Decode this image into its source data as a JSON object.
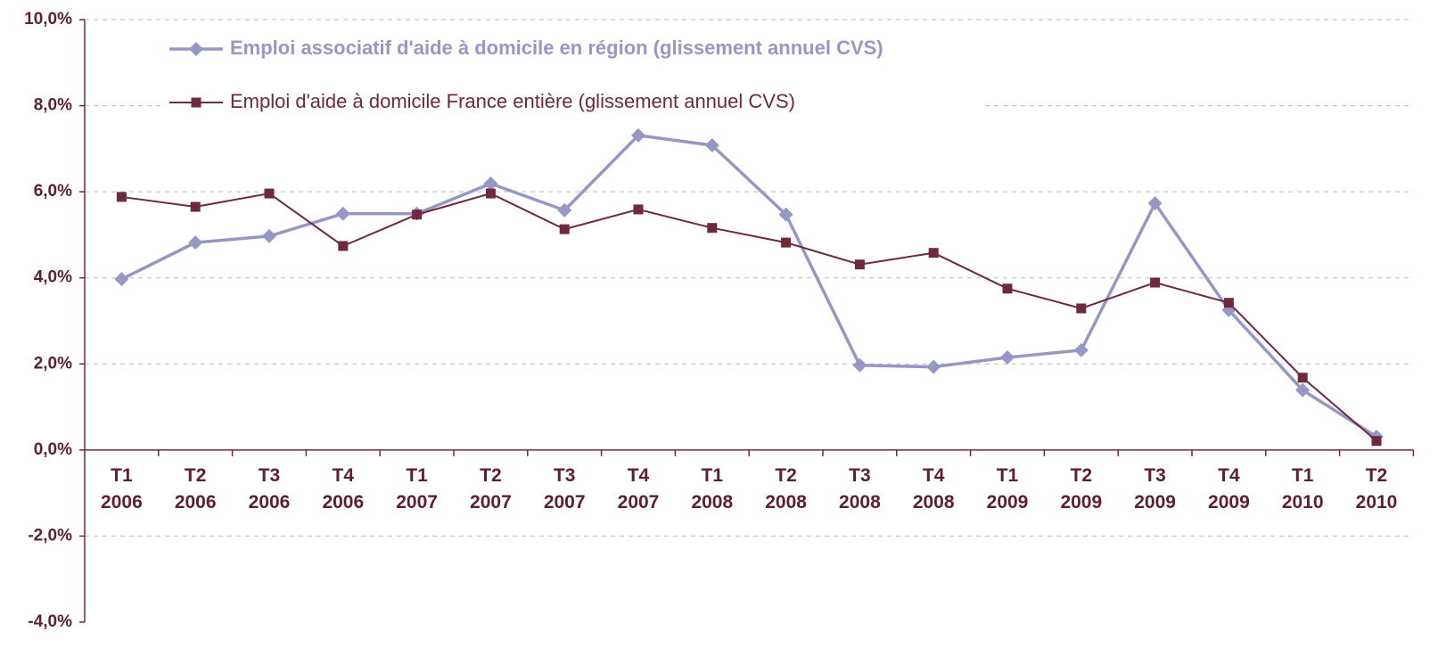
{
  "chart_data": {
    "type": "line",
    "categories": [
      "T1 2006",
      "T2 2006",
      "T3 2006",
      "T4 2006",
      "T1 2007",
      "T2 2007",
      "T3 2007",
      "T4 2007",
      "T1 2008",
      "T2 2008",
      "T3 2008",
      "T4 2008",
      "T1 2009",
      "T2 2009",
      "T3 2009",
      "T4 2009",
      "T1 2010",
      "T2 2010"
    ],
    "series": [
      {
        "name": "Emploi associatif d'aide à domicile en région (glissement annuel CVS)",
        "color": "#9797c6",
        "values": [
          3.97,
          4.82,
          4.97,
          5.49,
          5.49,
          6.19,
          5.57,
          7.31,
          7.08,
          5.47,
          1.97,
          1.93,
          2.15,
          2.32,
          5.73,
          3.25,
          1.39,
          0.31
        ]
      },
      {
        "name": "Emploi d'aide à domicile France entière (glissement annuel CVS)",
        "color": "#6e2840",
        "values": [
          5.88,
          5.65,
          5.96,
          4.74,
          5.47,
          5.96,
          5.13,
          5.59,
          5.16,
          4.82,
          4.31,
          4.58,
          3.75,
          3.29,
          3.89,
          3.42,
          1.68,
          0.21
        ]
      }
    ],
    "ylim": [
      -4,
      10
    ],
    "yticks": [
      {
        "value": -4,
        "label": "-4,0%"
      },
      {
        "value": -2,
        "label": "-2,0%"
      },
      {
        "value": 0,
        "label": "0,0%"
      },
      {
        "value": 2,
        "label": "2,0%"
      },
      {
        "value": 4,
        "label": "4,0%"
      },
      {
        "value": 6,
        "label": "6,0%"
      },
      {
        "value": 8,
        "label": "8,0%"
      },
      {
        "value": 10,
        "label": "10,0%"
      }
    ],
    "grid": true,
    "legend": "top-left"
  }
}
